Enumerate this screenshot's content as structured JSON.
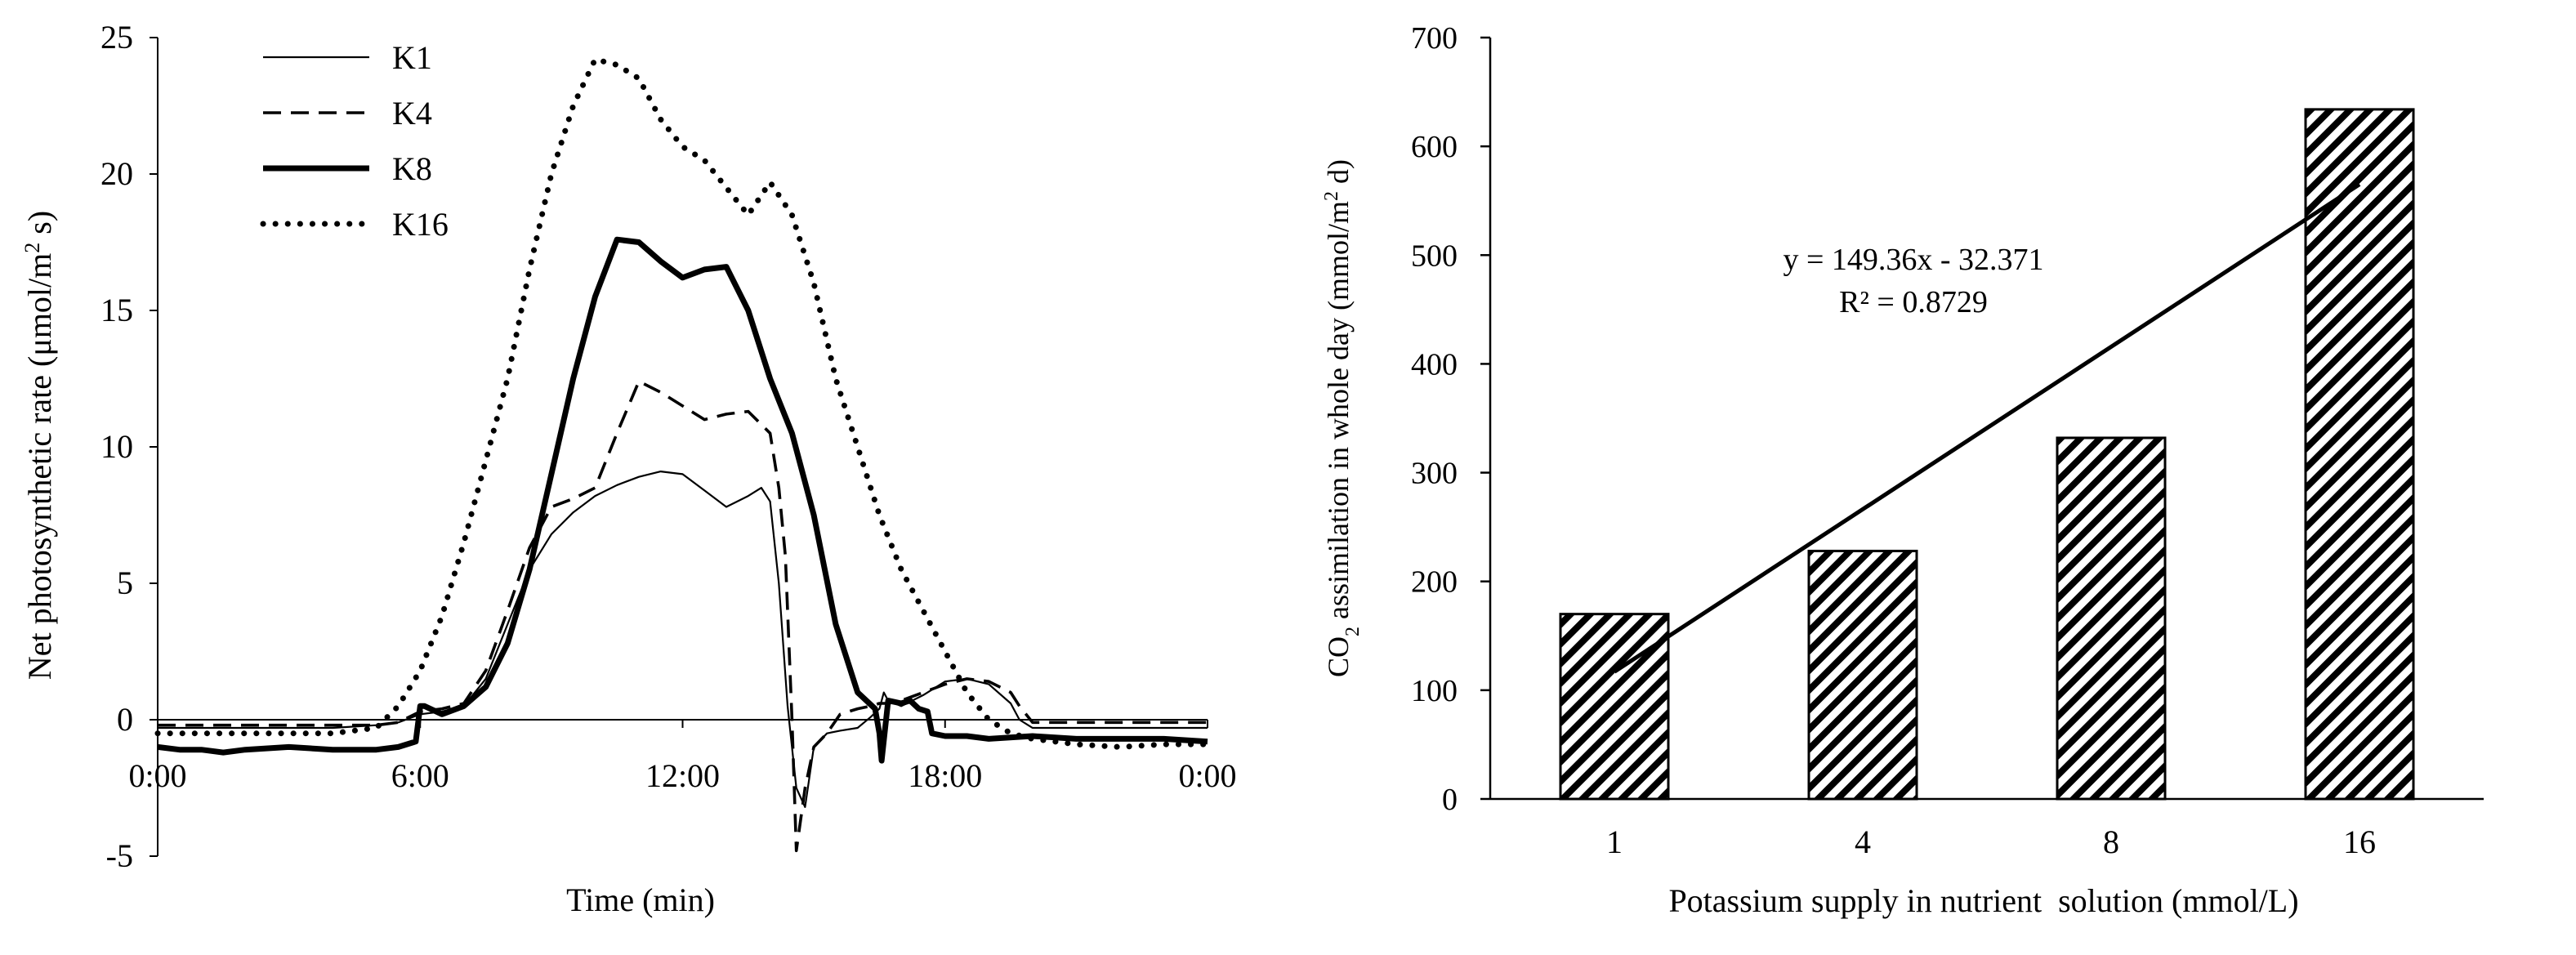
{
  "chart_data": [
    {
      "type": "line",
      "title": "",
      "xlabel": "Time (min)",
      "ylabel_parts": {
        "main": "Net photosynthetic rate (",
        "unit": "μmol/m",
        "sup": "2",
        "tail": " s)"
      },
      "ylim": [
        -5,
        25
      ],
      "yticks": [
        -5,
        0,
        5,
        10,
        15,
        20,
        25
      ],
      "xlim": [
        0,
        24
      ],
      "xticks": [
        0,
        6,
        12,
        18,
        24
      ],
      "xtick_labels": [
        "0:00",
        "6:00",
        "12:00",
        "18:00",
        "0:00"
      ],
      "legend_position": "top-left",
      "series": [
        {
          "name": "K1",
          "style": "thin",
          "x": [
            0,
            1,
            2,
            3,
            4,
            5,
            5.5,
            6,
            6.5,
            7,
            7.5,
            8,
            8.5,
            9,
            9.5,
            10,
            10.5,
            11,
            11.5,
            12,
            12.5,
            13,
            13.5,
            13.8,
            14,
            14.2,
            14.4,
            14.6,
            14.8,
            15,
            15.3,
            15.6,
            16,
            16.3,
            16.5,
            16.6,
            16.7,
            17,
            17.5,
            18,
            18.5,
            19,
            19.5,
            19.7,
            20,
            21,
            22,
            23,
            24
          ],
          "y": [
            -0.3,
            -0.3,
            -0.3,
            -0.3,
            -0.3,
            -0.2,
            -0.1,
            0.2,
            0.3,
            0.5,
            1.5,
            3.5,
            5.5,
            6.8,
            7.6,
            8.2,
            8.6,
            8.9,
            9.1,
            9.0,
            8.4,
            7.8,
            8.2,
            8.5,
            8.0,
            5.0,
            0.5,
            -2.5,
            -3.2,
            -1.0,
            -0.5,
            -0.4,
            -0.3,
            0.1,
            0.4,
            1.0,
            0.7,
            0.5,
            0.9,
            1.4,
            1.5,
            1.3,
            0.6,
            0.0,
            -0.3,
            -0.3,
            -0.3,
            -0.3,
            -0.3
          ]
        },
        {
          "name": "K4",
          "style": "dashed",
          "x": [
            0,
            1,
            2,
            3,
            4,
            5,
            5.5,
            6,
            6.5,
            7,
            7.5,
            8,
            8.5,
            9,
            9.5,
            10,
            10.5,
            11,
            11.5,
            12,
            12.5,
            13,
            13.5,
            14,
            14.2,
            14.35,
            14.5,
            14.6,
            14.8,
            15,
            15.3,
            15.6,
            16,
            16.3,
            16.5,
            16.7,
            17,
            17.5,
            18,
            18.5,
            19,
            19.5,
            19.7,
            20,
            21,
            22,
            23,
            24
          ],
          "y": [
            -0.2,
            -0.2,
            -0.2,
            -0.2,
            -0.2,
            -0.2,
            -0.1,
            0.3,
            0.4,
            0.6,
            1.8,
            4.0,
            6.3,
            7.8,
            8.1,
            8.5,
            10.5,
            12.4,
            12.0,
            11.5,
            11.0,
            11.2,
            11.3,
            10.5,
            8.5,
            6.0,
            0.0,
            -4.8,
            -2.5,
            -1.0,
            -0.5,
            0.2,
            0.4,
            0.5,
            0.6,
            0.6,
            0.7,
            1.0,
            1.3,
            1.5,
            1.4,
            1.0,
            0.5,
            -0.1,
            -0.1,
            -0.1,
            -0.1,
            -0.1
          ]
        },
        {
          "name": "K8",
          "style": "thick",
          "x": [
            0,
            0.5,
            1,
            1.5,
            2,
            3,
            4,
            5,
            5.5,
            5.9,
            6,
            6.1,
            6.5,
            7,
            7.5,
            8,
            8.5,
            9,
            9.5,
            10,
            10.5,
            11,
            11.5,
            12,
            12.5,
            13,
            13.5,
            14,
            14.5,
            15,
            15.5,
            16,
            16.4,
            16.5,
            16.55,
            16.7,
            17,
            17.2,
            17.4,
            17.6,
            17.7,
            18,
            18.5,
            19,
            20,
            21,
            22,
            23,
            24
          ],
          "y": [
            -1.0,
            -1.1,
            -1.1,
            -1.2,
            -1.1,
            -1.0,
            -1.1,
            -1.1,
            -1.0,
            -0.8,
            0.5,
            0.5,
            0.2,
            0.5,
            1.2,
            2.8,
            5.5,
            9.0,
            12.5,
            15.5,
            17.6,
            17.5,
            16.8,
            16.2,
            16.5,
            16.6,
            15.0,
            12.5,
            10.5,
            7.5,
            3.5,
            1.0,
            0.4,
            -0.5,
            -1.5,
            0.7,
            0.6,
            0.7,
            0.4,
            0.3,
            -0.5,
            -0.6,
            -0.6,
            -0.7,
            -0.6,
            -0.7,
            -0.7,
            -0.7,
            -0.8
          ]
        },
        {
          "name": "K16",
          "style": "dotted",
          "x": [
            0,
            1,
            2,
            3,
            4,
            5,
            5.5,
            6,
            6.5,
            7,
            7.5,
            8,
            8.5,
            9,
            9.5,
            10,
            10.5,
            11,
            11.5,
            12,
            12.5,
            13,
            13.5,
            14,
            14.5,
            15,
            15.5,
            16,
            16.5,
            17,
            17.5,
            18,
            18.5,
            19,
            19.5,
            20,
            21,
            22,
            23,
            24
          ],
          "y": [
            -0.5,
            -0.5,
            -0.5,
            -0.5,
            -0.5,
            -0.3,
            0.5,
            1.8,
            3.8,
            6.5,
            9.5,
            12.5,
            16.5,
            20.0,
            22.5,
            24.2,
            24.0,
            23.5,
            22.0,
            21.0,
            20.5,
            19.5,
            18.5,
            19.7,
            18.5,
            16.0,
            12.5,
            10.0,
            7.5,
            5.5,
            4.0,
            2.5,
            1.0,
            0.0,
            -0.5,
            -0.7,
            -0.9,
            -1.0,
            -0.9,
            -0.9
          ]
        }
      ]
    },
    {
      "type": "bar",
      "title": "",
      "xlabel": "Potassium supply in nutrient  solution (mmol/L)",
      "ylabel_parts": {
        "pre": "CO",
        "sub": "2",
        "mid": " assimilation in whole day (mmol/m",
        "sup": "2",
        "tail": " d)"
      },
      "categories": [
        "1",
        "4",
        "8",
        "16"
      ],
      "values": [
        170,
        228,
        332,
        634
      ],
      "ylim": [
        0,
        700
      ],
      "yticks": [
        0,
        100,
        200,
        300,
        400,
        500,
        600,
        700
      ],
      "bar_pattern": "diagonal-hatch",
      "trendline": {
        "slope": 149.36,
        "intercept": -32.371,
        "x_from": 1,
        "x_to": 4,
        "equation": "y = 149.36x - 32.371",
        "r2": "R² = 0.8729"
      }
    }
  ]
}
